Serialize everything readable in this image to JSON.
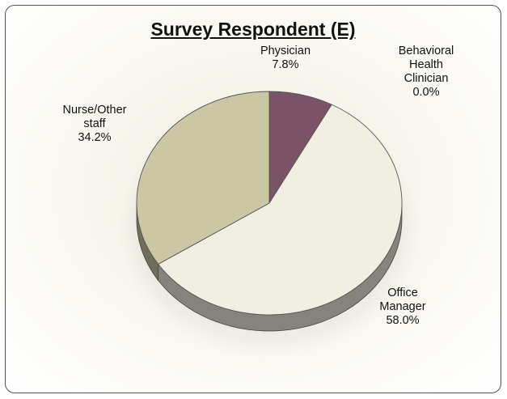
{
  "chart_data": {
    "type": "pie",
    "title": "Survey Respondent (E)",
    "slices": [
      {
        "label": [
          "Physician"
        ],
        "value": 7.8,
        "value_text": "7.8%",
        "color": "#7a5466"
      },
      {
        "label": [
          "Behavioral",
          "Health",
          "Clinician"
        ],
        "value": 0.0,
        "value_text": "0.0%",
        "color": "#8a8a6e"
      },
      {
        "label": [
          "Office",
          "Manager"
        ],
        "value": 58.0,
        "value_text": "58.0%",
        "color": "#f1eee2"
      },
      {
        "label": [
          "Nurse/Other",
          "staff"
        ],
        "value": 34.2,
        "value_text": "34.2%",
        "color": "#cbc6a4"
      }
    ],
    "style": "3d-tilted",
    "legend": "none",
    "grid": false
  }
}
